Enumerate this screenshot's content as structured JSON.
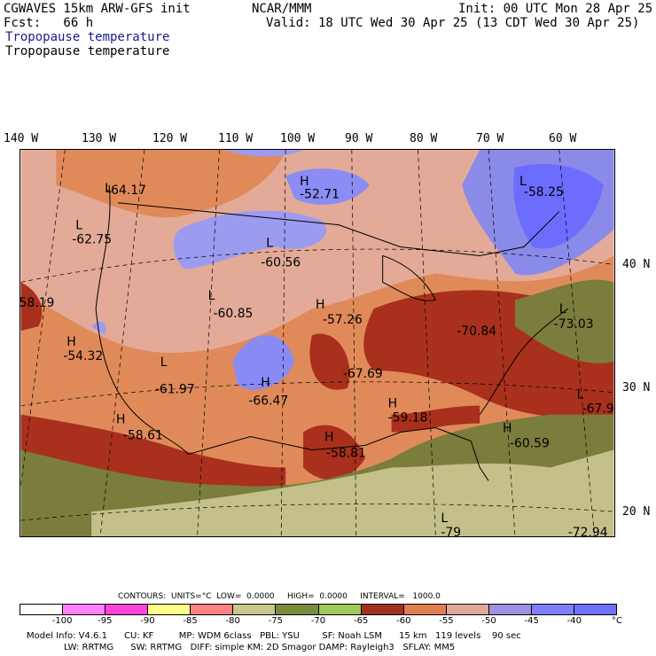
{
  "header": {
    "model": "CGWAVES 15km ARW-GFS init",
    "fcst": "Fcst:   66 h",
    "agency": "NCAR/MMM",
    "init": "Init: 00 UTC Mon 28 Apr 25",
    "valid": "Valid: 18 UTC Wed 30 Apr 25 (13 CDT Wed 30 Apr 25)",
    "field_blue": "Tropopause temperature",
    "field_black": "Tropopause temperature"
  },
  "lon_labels": [
    "140 W",
    "130 W",
    "120 W",
    "110 W",
    "100 W",
    "90 W",
    "80 W",
    "70 W",
    "60 W"
  ],
  "lat_labels": [
    "40 N",
    "30 N",
    "20 N"
  ],
  "map_labels": [
    {
      "hl": "L",
      "value": "-64.17"
    },
    {
      "hl": "H",
      "value": "-52.71"
    },
    {
      "hl": "L",
      "value": "-58.25"
    },
    {
      "hl": "L",
      "value": "-62.75"
    },
    {
      "hl": "L",
      "value": "-60.56"
    },
    {
      "hl": "",
      "value": "58.19"
    },
    {
      "hl": "L",
      "value": "-60.85"
    },
    {
      "hl": "H",
      "value": "-57.26"
    },
    {
      "hl": "L",
      "value": "-73.03"
    },
    {
      "hl": "",
      "value": "-70.84"
    },
    {
      "hl": "H",
      "value": "-54.32"
    },
    {
      "hl": "L",
      "value": "-61.97"
    },
    {
      "hl": "H",
      "value": "-66.47"
    },
    {
      "hl": "",
      "value": "-67.69"
    },
    {
      "hl": "L",
      "value": "-67.9"
    },
    {
      "hl": "H",
      "value": "-58.61"
    },
    {
      "hl": "H",
      "value": "-59.18"
    },
    {
      "hl": "H",
      "value": "-60.59"
    },
    {
      "hl": "H",
      "value": "-58.81"
    },
    {
      "hl": "L",
      "value": "-79"
    },
    {
      "hl": "",
      "value": "-72.94"
    }
  ],
  "contours_info": "CONTOURS:  UNITS=°C  LOW=  0.0000     HIGH=  0.0000     INTERVAL=   1000.0",
  "colorbar": {
    "colors": [
      "#ffffff",
      "#ff80ff",
      "#ff44dd",
      "#ffff88",
      "#ff8080",
      "#c8c88c",
      "#788c3c",
      "#a0c85a",
      "#a03020",
      "#e08050",
      "#e0a898",
      "#a090e0",
      "#8080ff",
      "#7070ff",
      "#6a6aff",
      "#6060ff"
    ],
    "ticks": [
      "-100",
      "-95",
      "-90",
      "-85",
      "-80",
      "-75",
      "-70",
      "-65",
      "-60",
      "-55",
      "-50",
      "-45",
      "-40",
      "°C"
    ]
  },
  "footer": {
    "line1": "Model Info: V4.6.1      CU: KF         MP: WDM 6class   PBL: YSU        SF: Noah LSM      15 km   119 levels    90 sec",
    "line2": "LW: RRTMG      SW: RRTMG   DIFF: simple KM: 2D Smagor DAMP: Rayleigh3   SFLAY: MM5"
  }
}
